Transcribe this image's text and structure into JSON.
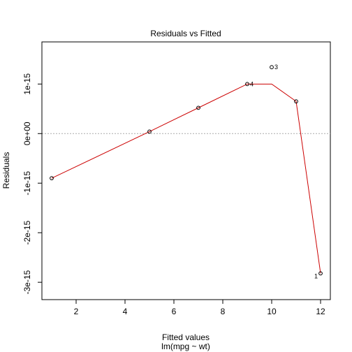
{
  "chart_data": {
    "type": "scatter",
    "title": "Residuals vs Fitted",
    "xlabel": "Fitted values",
    "xlabel_sub": "lm(mpg ~ wt)",
    "ylabel": "Residuals",
    "xlim": [
      0.6,
      12.4
    ],
    "ylim": [
      -3.35e-15,
      1.85e-15
    ],
    "x_ticks": [
      2,
      4,
      6,
      8,
      10,
      12
    ],
    "x_tick_labels": [
      "2",
      "4",
      "6",
      "8",
      "10",
      "12"
    ],
    "y_ticks": [
      1e-15,
      0,
      -1e-15,
      -2e-15,
      -3e-15
    ],
    "y_tick_labels": [
      "1e-15",
      "0e+00",
      "-1e-15",
      "-2e-15",
      "-3e-15"
    ],
    "points": [
      {
        "x": 1,
        "y": -9e-16,
        "label": ""
      },
      {
        "x": 5,
        "y": 4e-17,
        "label": ""
      },
      {
        "x": 7,
        "y": 5.2e-16,
        "label": ""
      },
      {
        "x": 9,
        "y": 1e-15,
        "label": "4"
      },
      {
        "x": 10,
        "y": 1.34e-15,
        "label": "3"
      },
      {
        "x": 11,
        "y": 6.5e-16,
        "label": ""
      },
      {
        "x": 12,
        "y": -2.82e-15,
        "label": "1"
      }
    ],
    "smooth": {
      "color": "#cc0000",
      "x": [
        1,
        5,
        7,
        9,
        10,
        11,
        12
      ],
      "y": [
        -9e-16,
        4e-17,
        5.2e-16,
        1e-15,
        1e-15,
        6.5e-16,
        -2.82e-15
      ]
    },
    "reference_line": {
      "y": 0,
      "color": "#aaaaaa",
      "style": "dotted"
    },
    "grid": false
  }
}
